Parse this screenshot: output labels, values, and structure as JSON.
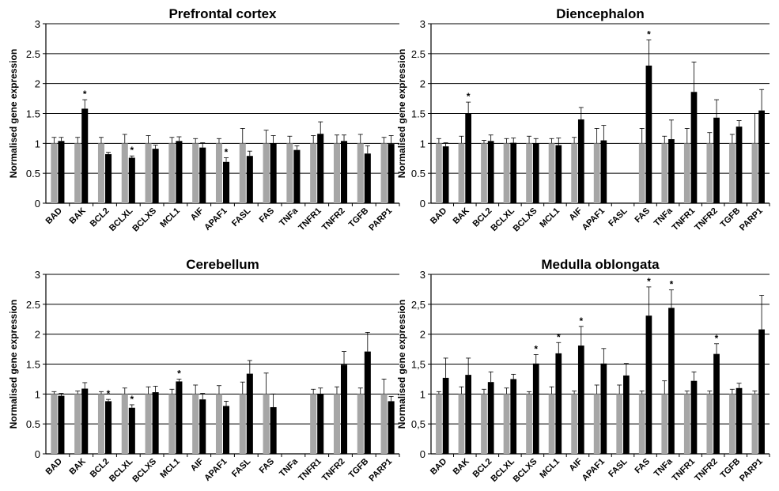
{
  "chart_data": [
    {
      "type": "bar",
      "title": "Prefrontal cortex",
      "ylabel": "Normalised gene expression",
      "ylim": [
        0,
        3
      ],
      "yticks": [
        "0",
        "0.5",
        "1",
        "1.5",
        "2",
        "2.5",
        "3"
      ],
      "grid": true,
      "categories": [
        "BAD",
        "BAK",
        "BCL2",
        "BCLXL",
        "BCLXS",
        "MCL1",
        "AIF",
        "APAF1",
        "FASL",
        "FAS",
        "TNFa",
        "TNFR1",
        "TNFR2",
        "TGFB",
        "PARP1"
      ],
      "series": [
        {
          "color": "#a6a6a6",
          "values": [
            1,
            1,
            1,
            1,
            1,
            1,
            1,
            1,
            1,
            1,
            1,
            1,
            1,
            1,
            1
          ],
          "errors": [
            0.1,
            0.1,
            0.1,
            0.15,
            0.13,
            0.1,
            0.08,
            0.08,
            0.25,
            0.22,
            0.12,
            0.13,
            0.14,
            0.15,
            0.1
          ]
        },
        {
          "color": "#000000",
          "values": [
            1.04,
            1.58,
            0.82,
            0.76,
            0.91,
            1.04,
            0.93,
            0.69,
            0.79,
            1.0,
            0.89,
            1.16,
            1.04,
            0.83,
            0.99
          ],
          "errors": [
            0.06,
            0.15,
            0.03,
            0.03,
            0.06,
            0.07,
            0.08,
            0.07,
            0.08,
            0.13,
            0.07,
            0.2,
            0.1,
            0.13,
            0.14
          ]
        }
      ],
      "significance": [
        "",
        "*",
        "",
        "*",
        "",
        "",
        "",
        "*",
        "",
        "",
        "",
        "",
        "",
        "",
        ""
      ]
    },
    {
      "type": "bar",
      "title": "Diencephalon",
      "ylabel": "Normalised gene expression",
      "ylim": [
        0,
        3
      ],
      "yticks": [
        "0",
        "0.5",
        "1",
        "1.5",
        "2",
        "2.5",
        "3"
      ],
      "grid": true,
      "categories": [
        "BAD",
        "BAK",
        "BCL2",
        "BCLXL",
        "BCLXS",
        "MCL1",
        "AIF",
        "APAF1",
        "FASL",
        "FAS",
        "TNFa",
        "TNFR1",
        "TNFR2",
        "TGFB",
        "PARP1"
      ],
      "series": [
        {
          "color": "#a6a6a6",
          "values": [
            1,
            1,
            1,
            1,
            1,
            1,
            1,
            1,
            null,
            1,
            1,
            1,
            1,
            1,
            1
          ],
          "errors": [
            0.08,
            0.12,
            0.05,
            0.08,
            0.12,
            0.08,
            0.1,
            0.25,
            0,
            0.25,
            0.12,
            0.25,
            0.18,
            0.15,
            0.5
          ]
        },
        {
          "color": "#000000",
          "values": [
            0.95,
            1.5,
            1.04,
            1.01,
            1.0,
            0.97,
            1.4,
            1.05,
            null,
            2.3,
            1.07,
            1.86,
            1.43,
            1.28,
            1.55
          ],
          "errors": [
            0.06,
            0.19,
            0.1,
            0.08,
            0.08,
            0.12,
            0.2,
            0.25,
            0,
            0.43,
            0.32,
            0.5,
            0.3,
            0.1,
            0.35
          ]
        }
      ],
      "significance": [
        "",
        "*",
        "",
        "",
        "",
        "",
        "",
        "",
        "",
        "*",
        "",
        "",
        "",
        "",
        ""
      ]
    },
    {
      "type": "bar",
      "title": "Cerebellum",
      "ylabel": "Normalised gene expression",
      "ylim": [
        0,
        3
      ],
      "yticks": [
        "0",
        "0.5",
        "1",
        "1.5",
        "2",
        "2.5",
        "3"
      ],
      "grid": true,
      "categories": [
        "BAD",
        "BAK",
        "BCL2",
        "BCLXL",
        "BCLXS",
        "MCL1",
        "AIF",
        "APAF1",
        "FASL",
        "FAS",
        "TNFa",
        "TNFR1",
        "TNFR2",
        "TGFB",
        "PARP1"
      ],
      "series": [
        {
          "color": "#a6a6a6",
          "values": [
            1,
            1,
            1,
            1,
            1,
            1,
            1,
            1,
            1,
            1,
            null,
            1,
            1,
            1,
            1
          ],
          "errors": [
            0.04,
            0.05,
            0.04,
            0.1,
            0.12,
            0.08,
            0.15,
            0.14,
            0.2,
            0.35,
            0,
            0.08,
            0.12,
            0.1,
            0.25
          ]
        },
        {
          "color": "#000000",
          "values": [
            0.97,
            1.09,
            0.88,
            0.77,
            1.03,
            1.21,
            0.91,
            0.8,
            1.34,
            0.78,
            null,
            1.0,
            1.49,
            1.71,
            0.88
          ],
          "errors": [
            0.04,
            0.1,
            0.03,
            0.05,
            0.1,
            0.04,
            0.1,
            0.08,
            0.22,
            0.22,
            0,
            0.1,
            0.22,
            0.32,
            0.08
          ]
        }
      ],
      "significance": [
        "",
        "",
        "*",
        "*",
        "",
        "*",
        "",
        "",
        "",
        "",
        "",
        "",
        "",
        "",
        ""
      ]
    },
    {
      "type": "bar",
      "title": "Medulla oblongata",
      "ylabel": "Normalised gene expression",
      "ylim": [
        0,
        3
      ],
      "yticks": [
        "0",
        "0,5",
        "1",
        "1,5",
        "2",
        "2,5",
        "3"
      ],
      "grid": true,
      "categories": [
        "BAD",
        "BAK",
        "BCL2",
        "BCLXL",
        "BCLXS",
        "MCL1",
        "AIF",
        "APAF1",
        "FASL",
        "FAS",
        "TNFa",
        "TNFR1",
        "TNFR2",
        "TGFB",
        "PARP1"
      ],
      "series": [
        {
          "color": "#a6a6a6",
          "values": [
            1,
            1,
            1,
            1,
            1,
            1,
            1,
            1,
            1,
            1,
            1,
            1,
            1,
            1,
            1
          ],
          "errors": [
            0.04,
            0.12,
            0.08,
            0.1,
            0.04,
            0.12,
            0.05,
            0.15,
            0.15,
            0.05,
            0.22,
            0.05,
            0.05,
            0.08,
            0.05
          ]
        },
        {
          "color": "#000000",
          "values": [
            1.27,
            1.32,
            1.2,
            1.25,
            1.51,
            1.68,
            1.81,
            1.51,
            1.31,
            2.31,
            2.44,
            1.22,
            1.67,
            1.1,
            2.08
          ],
          "errors": [
            0.33,
            0.28,
            0.17,
            0.08,
            0.15,
            0.18,
            0.32,
            0.25,
            0.2,
            0.48,
            0.3,
            0.15,
            0.17,
            0.08,
            0.57
          ]
        }
      ],
      "significance": [
        "",
        "",
        "",
        "",
        "*",
        "*",
        "*",
        "",
        "",
        "*",
        "*",
        "",
        "*",
        "",
        ""
      ]
    }
  ]
}
